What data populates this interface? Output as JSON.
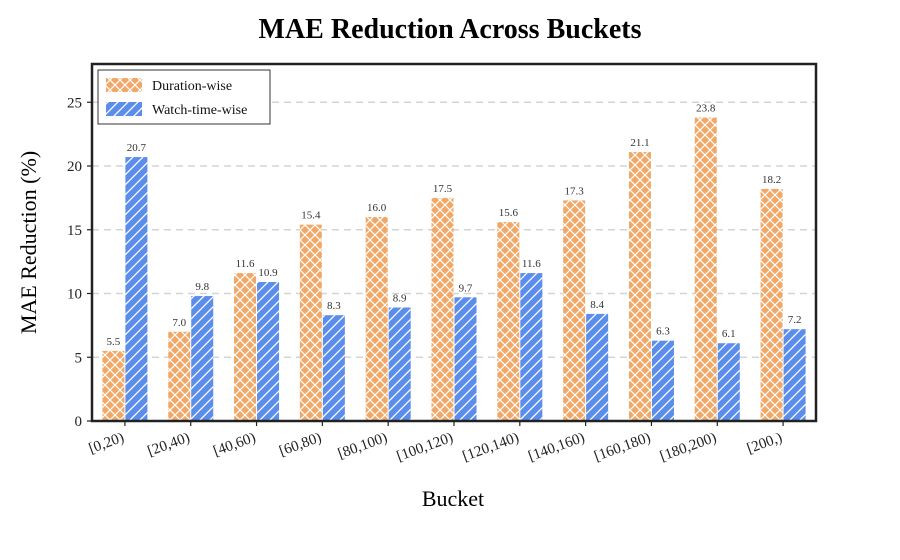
{
  "chart_data": {
    "type": "bar",
    "title": "MAE Reduction Across Buckets",
    "xlabel": "Bucket",
    "ylabel": "MAE Reduction (%)",
    "ylim": [
      0,
      28
    ],
    "yticks": [
      0,
      5,
      10,
      15,
      20,
      25
    ],
    "grid": "horizontal dashed",
    "legend_position": "top-left",
    "categories": [
      "[0,20)",
      "[20,40)",
      "[40,60)",
      "[60,80)",
      "[80,100)",
      "[100,120)",
      "[120,140)",
      "[140,160)",
      "[160,180)",
      "[180,200)",
      "[200,)"
    ],
    "series": [
      {
        "name": "Duration-wise",
        "color": "#F0A868",
        "hatch": "crosshatch",
        "values": [
          5.5,
          7.0,
          11.6,
          15.4,
          16.0,
          17.5,
          15.6,
          17.3,
          21.1,
          23.8,
          18.2
        ],
        "labels": [
          "5.5",
          "7.0",
          "11.6",
          "15.4",
          "16.0",
          "17.5",
          "15.6",
          "17.3",
          "21.1",
          "23.8",
          "18.2"
        ]
      },
      {
        "name": "Watch-time-wise",
        "color": "#5B8EEA",
        "hatch": "diagonal",
        "values": [
          20.7,
          9.8,
          10.9,
          8.3,
          8.9,
          9.7,
          11.6,
          8.4,
          6.3,
          6.1,
          7.2
        ],
        "labels": [
          "20.7",
          "9.8",
          "10.9",
          "8.3",
          "8.9",
          "9.7",
          "11.6",
          "8.4",
          "6.3",
          "6.1",
          "7.2"
        ]
      }
    ]
  }
}
